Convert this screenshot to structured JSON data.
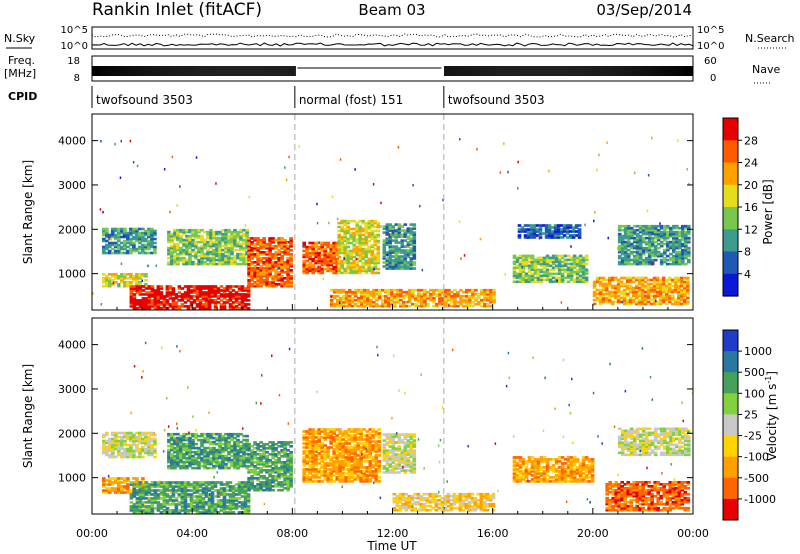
{
  "header": {
    "station": "Rankin Inlet (fitACF)",
    "beam": "Beam 03",
    "date": "03/Sep/2014"
  },
  "top_panels": {
    "nsky_label": "N.Sky",
    "nsky_ticks": [
      "10^5",
      "10^0"
    ],
    "nsearch_label": "N.Search",
    "nsearch_ticks": [
      "10^5",
      "10^0"
    ],
    "freq_label_1": "Freq.",
    "freq_label_2": "[MHz]",
    "freq_ticks": [
      "18",
      "8"
    ],
    "nave_label": "Nave",
    "nave_ticks": [
      "60",
      "0"
    ],
    "cpid_label": "CPID",
    "cpid_segments": [
      {
        "label": "twofsound 3503",
        "start_h": 0,
        "end_h": 8.1
      },
      {
        "label": "normal (fost) 151",
        "start_h": 8.1,
        "end_h": 14.05
      },
      {
        "label": "twofsound 3503",
        "start_h": 14.05,
        "end_h": 24
      }
    ]
  },
  "chart_data": [
    {
      "type": "heatmap",
      "name": "power",
      "xlabel": "",
      "ylabel": "Slant Range [km]",
      "xlim": [
        0,
        24
      ],
      "ylim": [
        180,
        4600
      ],
      "y_ticks": [
        1000,
        2000,
        3000,
        4000
      ],
      "colorbar_label": "Power [dB]",
      "colorbar_ticks": [
        "4",
        "8",
        "12",
        "16",
        "20",
        "24",
        "28"
      ],
      "colorbar_colors": [
        "#0a18d8",
        "#1e5ab4",
        "#3c9b8c",
        "#78c850",
        "#e6dc1e",
        "#ffa000",
        "#ff5a00",
        "#e60000"
      ],
      "dashed_times_h": [
        8.1,
        14.05
      ],
      "regions": [
        {
          "t0": 0.4,
          "t1": 2.5,
          "r0": 1450,
          "r1": 2000,
          "level": 2
        },
        {
          "t0": 0.4,
          "t1": 2.2,
          "r0": 700,
          "r1": 1000,
          "level": 4
        },
        {
          "t0": 1.5,
          "t1": 6.3,
          "r0": 200,
          "r1": 700,
          "level": 7
        },
        {
          "t0": 3.0,
          "t1": 6.2,
          "r0": 1200,
          "r1": 2000,
          "level": 3
        },
        {
          "t0": 6.2,
          "t1": 8.0,
          "r0": 700,
          "r1": 1800,
          "level": 6
        },
        {
          "t0": 8.4,
          "t1": 9.8,
          "r0": 1000,
          "r1": 1700,
          "level": 6
        },
        {
          "t0": 9.8,
          "t1": 11.4,
          "r0": 1000,
          "r1": 2200,
          "level": 4
        },
        {
          "t0": 11.6,
          "t1": 12.8,
          "r0": 1100,
          "r1": 2100,
          "level": 2
        },
        {
          "t0": 9.5,
          "t1": 16.0,
          "r0": 250,
          "r1": 650,
          "level": 5
        },
        {
          "t0": 16.8,
          "t1": 19.8,
          "r0": 800,
          "r1": 1400,
          "level": 3
        },
        {
          "t0": 17.0,
          "t1": 19.5,
          "r0": 1800,
          "r1": 2100,
          "level": 1
        },
        {
          "t0": 20.0,
          "t1": 23.8,
          "r0": 300,
          "r1": 900,
          "level": 5
        },
        {
          "t0": 21.0,
          "t1": 23.8,
          "r0": 1200,
          "r1": 2100,
          "level": 2
        }
      ]
    },
    {
      "type": "heatmap",
      "name": "velocity",
      "xlabel": "Time UT",
      "ylabel": "Slant Range [km]",
      "xlim": [
        0,
        24
      ],
      "ylim": [
        180,
        4600
      ],
      "x_tick_labels": [
        "00:00",
        "04:00",
        "08:00",
        "12:00",
        "16:00",
        "20:00",
        "00:00"
      ],
      "y_ticks": [
        1000,
        2000,
        3000,
        4000
      ],
      "colorbar_label": "Velocity [m s^-1]",
      "colorbar_ticks": [
        "1000",
        "500",
        "100",
        "25",
        "-25",
        "-100",
        "-500",
        "-1000"
      ],
      "colorbar_colors": [
        "#1e3cc8",
        "#2878a0",
        "#46a05a",
        "#82d23c",
        "#c8c8c8",
        "#ffd200",
        "#ffa000",
        "#ff6400",
        "#e60000"
      ],
      "dashed_times_h": [
        8.1,
        14.05
      ],
      "regions": [
        {
          "t0": 0.4,
          "t1": 2.5,
          "r0": 1450,
          "r1": 2000,
          "level": 4
        },
        {
          "t0": 0.4,
          "t1": 2.2,
          "r0": 650,
          "r1": 1000,
          "level": 6
        },
        {
          "t0": 1.5,
          "t1": 6.3,
          "r0": 200,
          "r1": 900,
          "level": 2
        },
        {
          "t0": 3.0,
          "t1": 6.2,
          "r0": 1200,
          "r1": 2000,
          "level": 2
        },
        {
          "t0": 6.2,
          "t1": 8.0,
          "r0": 700,
          "r1": 1800,
          "level": 2
        },
        {
          "t0": 8.4,
          "t1": 11.4,
          "r0": 900,
          "r1": 2100,
          "level": 6
        },
        {
          "t0": 11.6,
          "t1": 12.8,
          "r0": 1100,
          "r1": 2000,
          "level": 4
        },
        {
          "t0": 12.0,
          "t1": 16.0,
          "r0": 250,
          "r1": 650,
          "level": 5
        },
        {
          "t0": 16.8,
          "t1": 20.0,
          "r0": 900,
          "r1": 1450,
          "level": 6
        },
        {
          "t0": 20.5,
          "t1": 23.8,
          "r0": 250,
          "r1": 900,
          "level": 7
        },
        {
          "t0": 21.0,
          "t1": 23.8,
          "r0": 1500,
          "r1": 2100,
          "level": 4
        }
      ]
    }
  ]
}
